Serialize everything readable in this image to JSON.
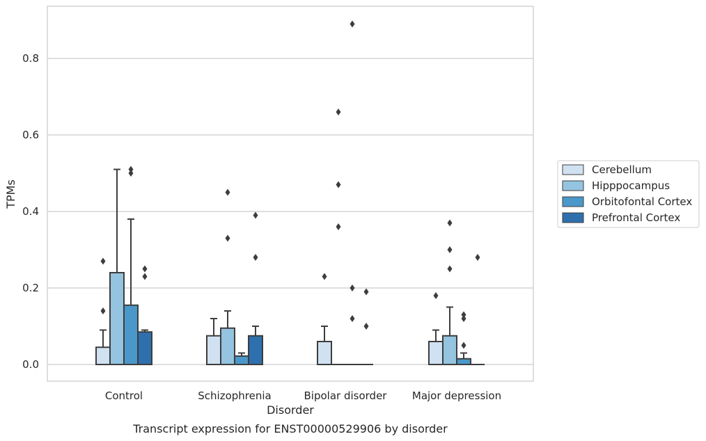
{
  "caption": "Transcript expression for ENST00000529906 by disorder",
  "chart_data": {
    "type": "bar",
    "subtype": "grouped bar with error bars and outlier points",
    "title": "",
    "xlabel": "Disorder",
    "ylabel": "TPMs",
    "ylim": [
      -0.043,
      0.94
    ],
    "yticks": [
      0.0,
      0.2,
      0.4,
      0.6,
      0.8
    ],
    "ytick_labels": [
      "0.0",
      "0.2",
      "0.4",
      "0.6",
      "0.8"
    ],
    "grid": "horizontal",
    "legend_position": "right",
    "categories": [
      "Control",
      "Schizophrenia",
      "Bipolar disorder",
      "Major depression"
    ],
    "series": [
      {
        "name": "Cerebellum",
        "color": "#d0e1f2",
        "values": [
          0.045,
          0.075,
          0.06,
          0.06
        ],
        "error_upper": [
          0.09,
          0.12,
          0.1,
          0.09
        ],
        "outliers": [
          [
            0.27,
            0.14
          ],
          [],
          [
            0.23
          ],
          [
            0.18
          ]
        ]
      },
      {
        "name": "Hipppocampus",
        "color": "#94c4df",
        "values": [
          0.24,
          0.095,
          0.0,
          0.075
        ],
        "error_upper": [
          0.51,
          0.14,
          null,
          0.15
        ],
        "outliers": [
          [],
          [
            0.45,
            0.33
          ],
          [
            0.66,
            0.47,
            0.36
          ],
          [
            0.37,
            0.3,
            0.25
          ]
        ]
      },
      {
        "name": "Orbitofontal Cortex",
        "color": "#4a98c9",
        "values": [
          0.155,
          0.022,
          0.0,
          0.015
        ],
        "error_upper": [
          0.38,
          0.03,
          null,
          0.03
        ],
        "outliers": [
          [
            0.51,
            0.5
          ],
          [],
          [
            0.89,
            0.2,
            0.12
          ],
          [
            0.13,
            0.12,
            0.05
          ]
        ]
      },
      {
        "name": "Prefrontal Cortex",
        "color": "#2e6fad",
        "values": [
          0.085,
          0.075,
          0.0,
          0.0
        ],
        "error_upper": [
          0.09,
          0.1,
          null,
          null
        ],
        "outliers": [
          [
            0.25,
            0.23
          ],
          [
            0.39,
            0.28
          ],
          [
            0.19,
            0.1
          ],
          [
            0.28
          ]
        ]
      }
    ]
  }
}
